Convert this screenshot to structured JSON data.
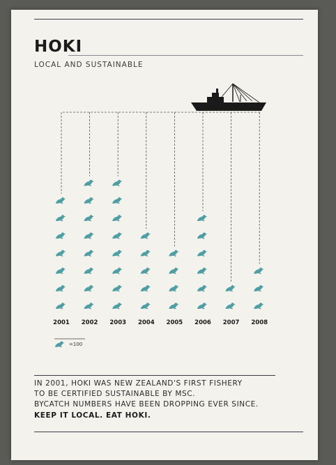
{
  "poster": {
    "title": "HOKI",
    "subtitle": "LOCAL AND SUSTAINABLE",
    "legend": {
      "value_text": "=100",
      "icon": "seal-icon"
    },
    "body_lines": [
      "IN 2001, HOKI WAS NEW ZEALAND'S FIRST FISHERY",
      "TO BE CERTIFIED SUSTAINABLE BY MSC.",
      "BYCATCH NUMBERS HAVE BEEN DROPPING EVER SINCE."
    ],
    "tagline": "KEEP IT LOCAL. EAT HOKI.",
    "icons": {
      "vessel": "fishing-boat-icon",
      "unit": "seal-icon"
    }
  },
  "colors": {
    "paper": "#f3f2ec",
    "seal": "#4f9ea3",
    "boat": "#1a1a1a",
    "rule": "#3d3a4a",
    "text": "#1b1b1b"
  },
  "chart_data": {
    "type": "pictograph",
    "categories": [
      "2001",
      "2002",
      "2003",
      "2004",
      "2005",
      "2006",
      "2007",
      "2008"
    ],
    "values": [
      700,
      800,
      800,
      500,
      400,
      600,
      200,
      300
    ],
    "unit_value": 100,
    "unit_label": "=100"
  }
}
